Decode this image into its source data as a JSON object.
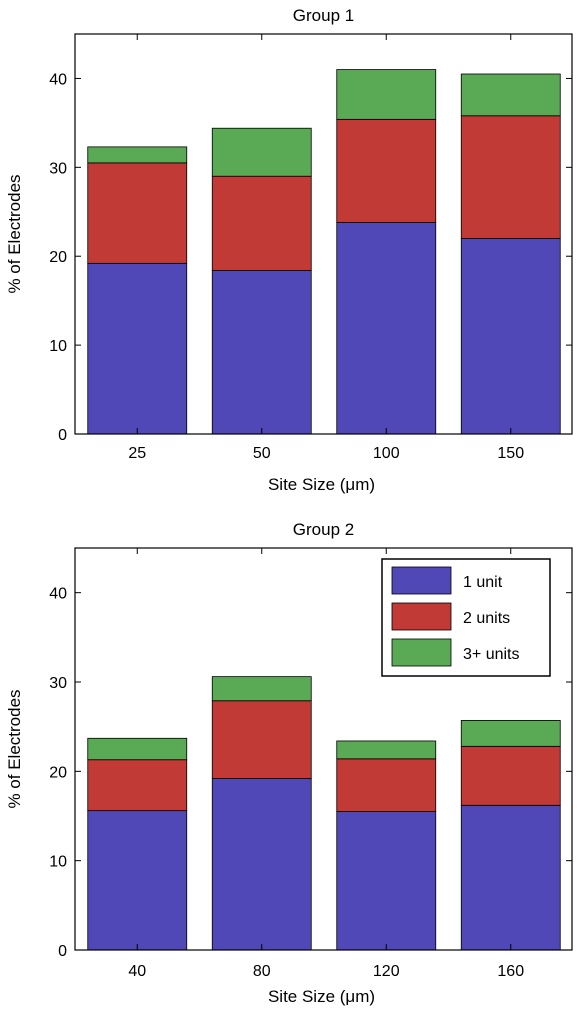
{
  "colors": {
    "one_unit": "#5148b8",
    "two_units": "#c23a35",
    "three_plus_units": "#5aaa55",
    "axis": "#000000",
    "background": "#ffffff"
  },
  "chart_data": [
    {
      "type": "bar",
      "stacked": true,
      "title": "Group 1",
      "xlabel": "Site Size (μm)",
      "ylabel": "% of Electrodes",
      "categories": [
        "25",
        "50",
        "100",
        "150"
      ],
      "ylim": [
        0,
        45
      ],
      "yticks": [
        0,
        10,
        20,
        30,
        40
      ],
      "grid": false,
      "legend": false,
      "series": [
        {
          "name": "1 unit",
          "values": [
            19.2,
            18.4,
            23.8,
            22.0
          ]
        },
        {
          "name": "2 units",
          "values": [
            11.3,
            10.6,
            11.6,
            13.8
          ]
        },
        {
          "name": "3+ units",
          "values": [
            1.8,
            5.4,
            5.6,
            4.7
          ]
        }
      ]
    },
    {
      "type": "bar",
      "stacked": true,
      "title": "Group 2",
      "xlabel": "Site Size (μm)",
      "ylabel": "% of Electrodes",
      "categories": [
        "40",
        "80",
        "120",
        "160"
      ],
      "ylim": [
        0,
        45
      ],
      "yticks": [
        0,
        10,
        20,
        30,
        40
      ],
      "grid": false,
      "legend": true,
      "legend_position": "top-right",
      "series": [
        {
          "name": "1 unit",
          "values": [
            15.6,
            19.2,
            15.5,
            16.2
          ]
        },
        {
          "name": "2 units",
          "values": [
            5.7,
            8.7,
            5.9,
            6.6
          ]
        },
        {
          "name": "3+ units",
          "values": [
            2.4,
            2.7,
            2.0,
            2.9
          ]
        }
      ]
    }
  ]
}
